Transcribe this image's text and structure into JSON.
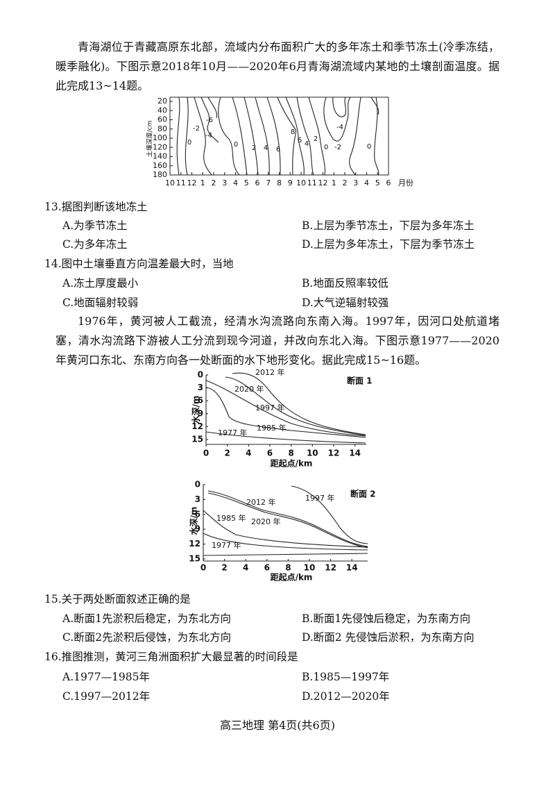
{
  "intro_1": "青海湖位于青藏高原东北部，流域内分布面积广大的多年冻土和季节冻土(冷季冻结，暖季融化)。下图示意2018年10月——2020年6月青海湖流域内某地的土壤剖面温度。据此完成13~14题。",
  "figure_1": {
    "y_label": "土壤深度/cm",
    "yticks": [
      20,
      40,
      60,
      80,
      100,
      120,
      140,
      160,
      180
    ],
    "xticks": [
      "10",
      "11",
      "12",
      "1",
      "2",
      "3",
      "4",
      "5",
      "6",
      "7",
      "8",
      "9",
      "10",
      "11",
      "12",
      "1",
      "2",
      "3",
      "4",
      "5",
      "6"
    ],
    "x_unit": "月份",
    "contour_labels": [
      "-6",
      "-4",
      "-2",
      "0",
      "0",
      "2",
      "4",
      "6",
      "8",
      "6",
      "4",
      "2",
      "0",
      "-2",
      "-4",
      "0"
    ]
  },
  "questions": [
    {
      "stem": "13.据图判断该地冻土",
      "options": [
        "A.为季节冻土",
        "B.上层为季节冻土，下层为多年冻土",
        "C.为多年冻土",
        "D.上层为多年冻土，下层为季节冻土"
      ]
    },
    {
      "stem": "14.图中土壤垂直方向温差最大时，当地",
      "options": [
        "A.冻土厚度最小",
        "B.地面反照率较低",
        "C.地面辐射较弱",
        "D.大气逆辐射较强"
      ]
    }
  ],
  "intro_2": "1976年，黄河被人工截流，经清水沟流路向东南入海。1997年，因河口处航道堵塞，清水沟流路下游被人工分流到现今河道，并改向东北入海。下图示意1977——2020年黄河口东北、东南方向各一处断面的水下地形变化。据此完成15~16题。",
  "figure_2": {
    "sections": [
      {
        "title": "断面 1",
        "y_label": "水深/m",
        "x_label": "距起点/km",
        "yticks": [
          0,
          3,
          6,
          9,
          12,
          15
        ],
        "xticks": [
          0,
          2,
          4,
          6,
          8,
          10,
          12,
          14
        ],
        "line_labels": [
          "2012 年",
          "2020 年",
          "1997 年",
          "1985 年",
          "1977 年"
        ]
      },
      {
        "title": "断面 2",
        "y_label": "水深/m",
        "x_label": "距起点/km",
        "yticks": [
          0,
          3,
          6,
          9,
          12,
          15
        ],
        "xticks": [
          0,
          2,
          4,
          6,
          8,
          10,
          12,
          14
        ],
        "line_labels": [
          "1997 年",
          "2012 年",
          "1985 年",
          "2020 年",
          "1977 年"
        ]
      }
    ]
  },
  "questions_2": [
    {
      "stem": "15.关于两处断面叙述正确的是",
      "options": [
        "A.断面1先淤积后稳定，为东北方向",
        "B.断面1先侵蚀后稳定，为东南方向",
        "C.断面2先淤积后侵蚀，为东北方向",
        "D.断面2 先侵蚀后淤积，为东南方向"
      ]
    },
    {
      "stem": "16.推图推测，黄河三角洲面积扩大最显著的时间段是",
      "options": [
        "A.1977—1985年",
        "B.1985—1997年",
        "C.1997—2012年",
        "D.2012—2020年"
      ]
    }
  ],
  "footer": "高三地理 第4页(共6页)"
}
